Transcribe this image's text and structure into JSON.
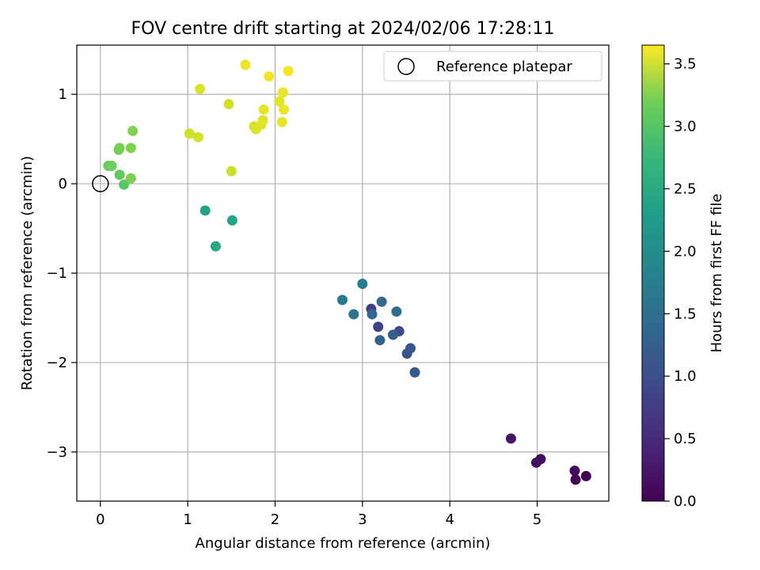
{
  "chart_data": {
    "type": "scatter",
    "title": "FOV centre drift starting at 2024/02/06 17:28:11",
    "xlabel": "Angular distance from reference (arcmin)",
    "ylabel": "Rotation from reference (arcmin)",
    "xlim": [
      -0.27,
      5.82
    ],
    "ylim": [
      -3.55,
      1.55
    ],
    "xticks": [
      0,
      1,
      2,
      3,
      4,
      5
    ],
    "xtick_labels": [
      "0",
      "1",
      "2",
      "3",
      "4",
      "5"
    ],
    "yticks": [
      -3,
      -2,
      -1,
      0,
      1
    ],
    "ytick_labels": [
      "−3",
      "−2",
      "−1",
      "0",
      "1"
    ],
    "grid": true,
    "legend": {
      "placement": "top-right",
      "entries": [
        {
          "label": "Reference platepar",
          "marker": "open-circle"
        }
      ]
    },
    "reference_point": {
      "x": 0,
      "y": 0
    },
    "colorbar": {
      "label": "Hours from first FF file",
      "colormap": "viridis",
      "range": [
        0.0,
        3.65
      ],
      "ticks": [
        0.0,
        0.5,
        1.0,
        1.5,
        2.0,
        2.5,
        3.0,
        3.5
      ],
      "tick_labels": [
        "0.0",
        "0.5",
        "1.0",
        "1.5",
        "2.0",
        "2.5",
        "3.0",
        "3.5"
      ]
    },
    "points": [
      {
        "x": 5.56,
        "y": -3.27,
        "c": 0.0
      },
      {
        "x": 5.44,
        "y": -3.31,
        "c": 0.04
      },
      {
        "x": 5.43,
        "y": -3.21,
        "c": 0.08
      },
      {
        "x": 5.04,
        "y": -3.08,
        "c": 0.12
      },
      {
        "x": 4.99,
        "y": -3.12,
        "c": 0.16
      },
      {
        "x": 4.7,
        "y": -2.85,
        "c": 0.2
      },
      {
        "x": 3.1,
        "y": -1.4,
        "c": 0.65
      },
      {
        "x": 3.18,
        "y": -1.6,
        "c": 0.75
      },
      {
        "x": 3.42,
        "y": -1.65,
        "c": 0.85
      },
      {
        "x": 3.51,
        "y": -1.9,
        "c": 0.95
      },
      {
        "x": 3.55,
        "y": -1.84,
        "c": 1.0
      },
      {
        "x": 3.6,
        "y": -2.11,
        "c": 1.05
      },
      {
        "x": 3.35,
        "y": -1.69,
        "c": 1.1
      },
      {
        "x": 3.2,
        "y": -1.75,
        "c": 1.15
      },
      {
        "x": 3.11,
        "y": -1.46,
        "c": 1.2
      },
      {
        "x": 3.22,
        "y": -1.32,
        "c": 1.25
      },
      {
        "x": 3.39,
        "y": -1.43,
        "c": 1.3
      },
      {
        "x": 2.9,
        "y": -1.46,
        "c": 1.4
      },
      {
        "x": 2.77,
        "y": -1.3,
        "c": 1.5
      },
      {
        "x": 3.0,
        "y": -1.12,
        "c": 1.55
      },
      {
        "x": 1.2,
        "y": -0.3,
        "c": 2.1
      },
      {
        "x": 1.51,
        "y": -0.41,
        "c": 2.15
      },
      {
        "x": 1.32,
        "y": -0.7,
        "c": 2.2
      },
      {
        "x": 0.27,
        "y": -0.01,
        "c": 2.7
      },
      {
        "x": 0.22,
        "y": 0.1,
        "c": 2.75
      },
      {
        "x": 0.09,
        "y": 0.2,
        "c": 2.8
      },
      {
        "x": 0.13,
        "y": 0.2,
        "c": 2.82
      },
      {
        "x": 0.21,
        "y": 0.38,
        "c": 2.85
      },
      {
        "x": 0.22,
        "y": 0.4,
        "c": 2.88
      },
      {
        "x": 0.35,
        "y": 0.06,
        "c": 2.9
      },
      {
        "x": 0.35,
        "y": 0.4,
        "c": 2.92
      },
      {
        "x": 0.37,
        "y": 0.59,
        "c": 2.95
      },
      {
        "x": 1.5,
        "y": 0.14,
        "c": 3.35
      },
      {
        "x": 1.02,
        "y": 0.56,
        "c": 3.38
      },
      {
        "x": 1.12,
        "y": 0.52,
        "c": 3.4
      },
      {
        "x": 1.14,
        "y": 1.06,
        "c": 3.45
      },
      {
        "x": 1.47,
        "y": 0.89,
        "c": 3.4
      },
      {
        "x": 1.76,
        "y": 0.64,
        "c": 3.42
      },
      {
        "x": 1.78,
        "y": 0.61,
        "c": 3.45
      },
      {
        "x": 1.86,
        "y": 0.71,
        "c": 3.47
      },
      {
        "x": 1.84,
        "y": 0.66,
        "c": 3.5
      },
      {
        "x": 1.87,
        "y": 0.83,
        "c": 3.52
      },
      {
        "x": 2.05,
        "y": 0.92,
        "c": 3.5
      },
      {
        "x": 2.09,
        "y": 1.02,
        "c": 3.53
      },
      {
        "x": 2.1,
        "y": 0.83,
        "c": 3.55
      },
      {
        "x": 2.08,
        "y": 0.69,
        "c": 3.52
      },
      {
        "x": 1.66,
        "y": 1.33,
        "c": 3.55
      },
      {
        "x": 1.93,
        "y": 1.2,
        "c": 3.58
      },
      {
        "x": 2.15,
        "y": 1.26,
        "c": 3.62
      }
    ]
  }
}
